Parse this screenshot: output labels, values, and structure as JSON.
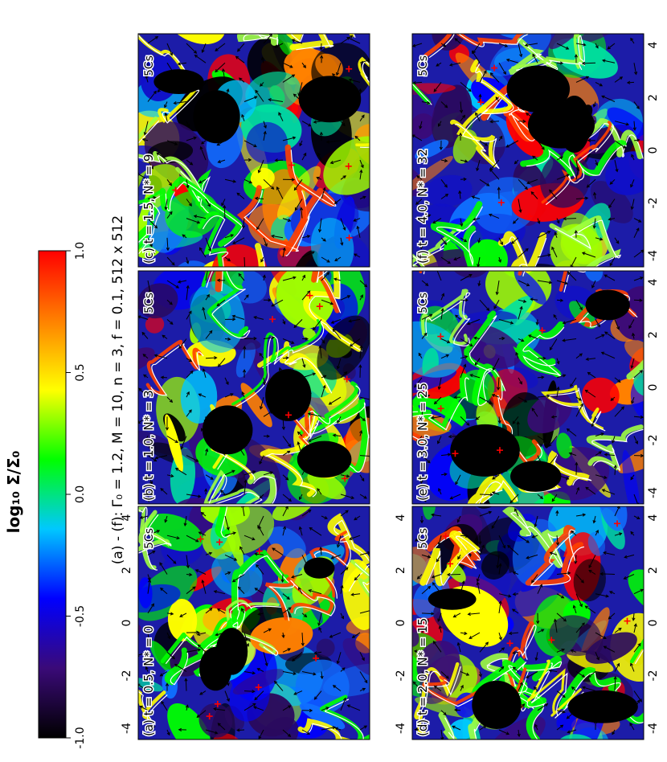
{
  "figure": {
    "suptitle": "(a) - (f): Γ₀ = 1.2, M = 10, n = 3, f = 0.1, 512 x 512",
    "colorbar": {
      "label": "log₁₀ Σ/Σ₀",
      "ticks": [
        "-1.0",
        "-0.5",
        "0.0",
        "0.5",
        "1.0"
      ],
      "colors": [
        "#000000",
        "#3a0a78",
        "#0000ff",
        "#00c8ff",
        "#00ff00",
        "#ffff00",
        "#ff8000",
        "#ff0000"
      ]
    },
    "scale_arrow_label": "5Cs",
    "axis_ticks": [
      "-4",
      "-2",
      "0",
      "2",
      "4"
    ],
    "panels": [
      {
        "id": "a",
        "label": "(a) t = 0.5, N* = 0",
        "has_y_ticks": true,
        "has_x_ticks": false
      },
      {
        "id": "b",
        "label": "(b) t = 1.0, N* = 3",
        "has_y_ticks": false,
        "has_x_ticks": false
      },
      {
        "id": "c",
        "label": "(c) t = 1.5, N* = 9",
        "has_y_ticks": false,
        "has_x_ticks": false
      },
      {
        "id": "d",
        "label": "(d) t = 2.0, N* = 15",
        "has_y_ticks": true,
        "has_x_ticks": true
      },
      {
        "id": "e",
        "label": "(e) t = 3.0, N* = 25",
        "has_y_ticks": false,
        "has_x_ticks": true
      },
      {
        "id": "f",
        "label": "(f) t = 4.0, N* = 32",
        "has_y_ticks": false,
        "has_x_ticks": true
      }
    ]
  }
}
